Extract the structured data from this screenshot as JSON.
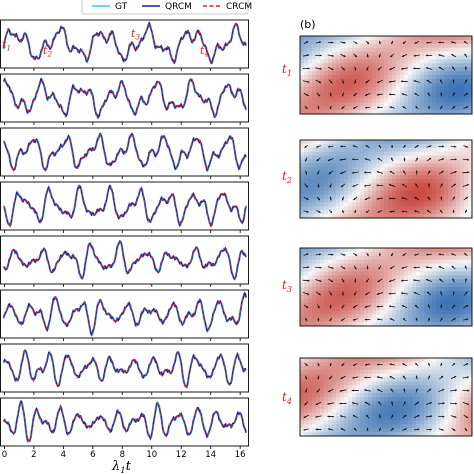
{
  "figure": {
    "panel_b_label": "(b)",
    "xlabel": "λ",
    "xlabel_sub": "1",
    "xlabel_tail": "t",
    "x_ticks": [
      "0",
      "2",
      "4",
      "6",
      "8",
      "10",
      "12",
      "14",
      "16"
    ],
    "time_labels": [
      {
        "base": "t",
        "sub": "1"
      },
      {
        "base": "t",
        "sub": "2"
      },
      {
        "base": "t",
        "sub": "3"
      },
      {
        "base": "t",
        "sub": "4"
      }
    ]
  },
  "legend": {
    "entries": [
      {
        "label": "GT",
        "color": "#3fc8e6",
        "style": "solid"
      },
      {
        "label": "QRCM",
        "color": "#1a1aa6",
        "style": "solid"
      },
      {
        "label": "CRCM",
        "color": "#e0201b",
        "style": "dashed"
      }
    ]
  },
  "colors": {
    "gt": "#3fc8e6",
    "qrcm": "#1a1aa6",
    "crcm": "#e0201b",
    "field_positive": "#c0281f",
    "field_negative": "#1f5fa8"
  },
  "chart_data": {
    "type": "line",
    "xlabel": "λ1t",
    "xlim": [
      -0.3,
      16.6
    ],
    "x_ticks": [
      0,
      2,
      4,
      6,
      8,
      10,
      12,
      14,
      16
    ],
    "panels_a": 8,
    "series": [
      {
        "name": "GT"
      },
      {
        "name": "QRCM"
      },
      {
        "name": "CRCM"
      }
    ],
    "snapshots": [
      "t1",
      "t2",
      "t3",
      "t4"
    ]
  }
}
